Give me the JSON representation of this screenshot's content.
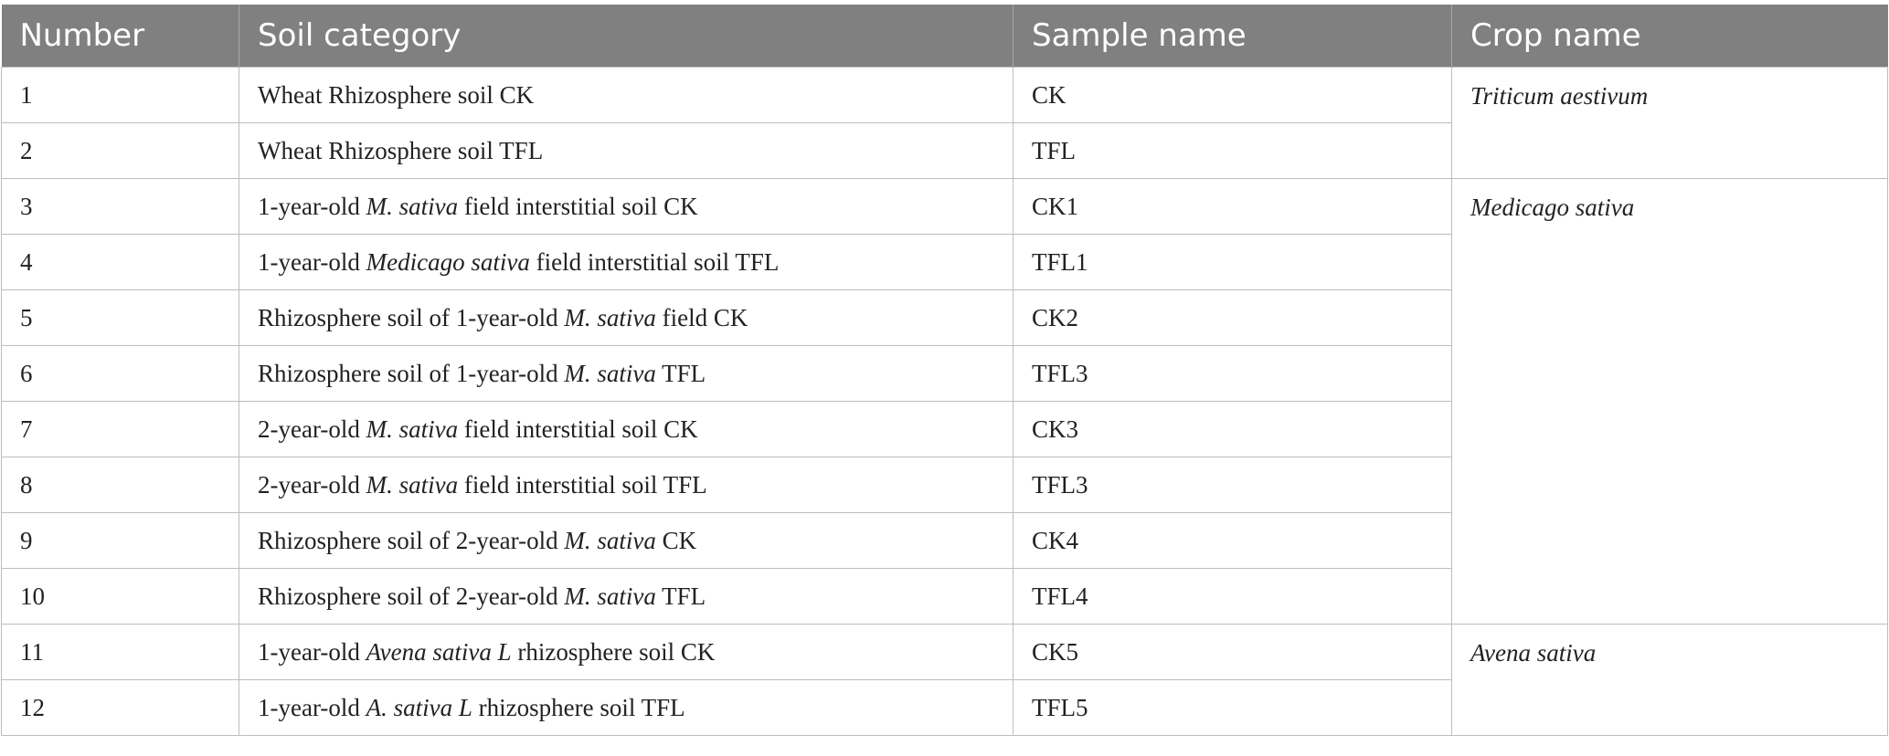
{
  "table": {
    "header": [
      "Number",
      "Soil category",
      "Sample name",
      "Crop name"
    ],
    "groups": [
      {
        "crop": "Triticum aestivum",
        "rows": [
          {
            "number": "1",
            "category": [
              {
                "text": "Wheat Rhizosphere soil CK"
              }
            ],
            "sample": "CK"
          },
          {
            "number": "2",
            "category": [
              {
                "text": "Wheat Rhizosphere soil TFL"
              }
            ],
            "sample": "TFL"
          }
        ]
      },
      {
        "crop": "Medicago sativa",
        "rows": [
          {
            "number": "3",
            "category": [
              {
                "text": "1-year-old "
              },
              {
                "text": "M. sativa",
                "italic": true
              },
              {
                "text": " field interstitial soil CK"
              }
            ],
            "sample": "CK1"
          },
          {
            "number": "4",
            "category": [
              {
                "text": "1-year-old "
              },
              {
                "text": "Medicago sativa",
                "italic": true
              },
              {
                "text": " field interstitial soil TFL"
              }
            ],
            "sample": "TFL1"
          },
          {
            "number": "5",
            "category": [
              {
                "text": "Rhizosphere soil of 1-year-old "
              },
              {
                "text": "M. sativa",
                "italic": true
              },
              {
                "text": " field CK"
              }
            ],
            "sample": "CK2"
          },
          {
            "number": "6",
            "category": [
              {
                "text": "Rhizosphere soil of 1-year-old "
              },
              {
                "text": "M. sativa",
                "italic": true
              },
              {
                "text": " TFL"
              }
            ],
            "sample": "TFL3"
          },
          {
            "number": "7",
            "category": [
              {
                "text": "2-year-old "
              },
              {
                "text": "M. sativa",
                "italic": true
              },
              {
                "text": " field interstitial soil CK"
              }
            ],
            "sample": "CK3"
          },
          {
            "number": "8",
            "category": [
              {
                "text": "2-year-old "
              },
              {
                "text": "M. sativa",
                "italic": true
              },
              {
                "text": " field interstitial soil TFL"
              }
            ],
            "sample": "TFL3"
          },
          {
            "number": "9",
            "category": [
              {
                "text": "Rhizosphere soil of 2-year-old "
              },
              {
                "text": "M. sativa",
                "italic": true
              },
              {
                "text": " CK"
              }
            ],
            "sample": "CK4"
          },
          {
            "number": "10",
            "category": [
              {
                "text": "Rhizosphere soil of 2-year-old "
              },
              {
                "text": "M. sativa",
                "italic": true
              },
              {
                "text": " TFL"
              }
            ],
            "sample": "TFL4"
          }
        ]
      },
      {
        "crop": "Avena sativa",
        "rows": [
          {
            "number": "11",
            "category": [
              {
                "text": "1-year-old "
              },
              {
                "text": "Avena sativa L",
                "italic": true
              },
              {
                "text": " rhizosphere soil CK"
              }
            ],
            "sample": "CK5"
          },
          {
            "number": "12",
            "category": [
              {
                "text": "1-year-old "
              },
              {
                "text": "A. sativa L",
                "italic": true
              },
              {
                "text": " rhizosphere soil TFL"
              }
            ],
            "sample": "TFL5"
          }
        ]
      }
    ]
  }
}
